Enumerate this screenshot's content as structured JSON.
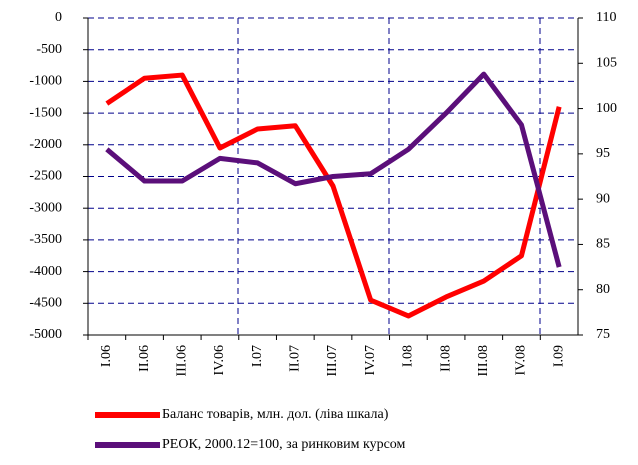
{
  "chart_data": {
    "type": "line",
    "categories": [
      "I.06",
      "II.06",
      "III.06",
      "IV.06",
      "I.07",
      "II.07",
      "III.07",
      "IV.07",
      "I.08",
      "II.08",
      "III.08",
      "IV.08",
      "I.09"
    ],
    "series": [
      {
        "name": "Баланс товарів, млн. дол. (ліва шкала)",
        "color": "#ff0000",
        "values": [
          -1350,
          -950,
          -900,
          -2050,
          -1750,
          -1700,
          -2650,
          -4450,
          -4700,
          -4400,
          -4150,
          -3750,
          -1400
        ]
      },
      {
        "name": "РЕОК, 2000.12=100, за ринковим курсом",
        "color": "#5b0f7a",
        "axis": "y2",
        "values": [
          95.5,
          92,
          92,
          94.5,
          94,
          91.7,
          92.5,
          92.8,
          95.5,
          99.5,
          103.8,
          98.2,
          82.5
        ]
      }
    ],
    "ylim": [
      -5000,
      0
    ],
    "yticks": [
      0,
      -500,
      -1000,
      -1500,
      -2000,
      -2500,
      -3000,
      -3500,
      -4000,
      -4500,
      -5000
    ],
    "y2lim": [
      75,
      110
    ],
    "y2ticks": [
      110,
      105,
      100,
      95,
      90,
      85,
      80,
      75
    ],
    "grid": true
  }
}
